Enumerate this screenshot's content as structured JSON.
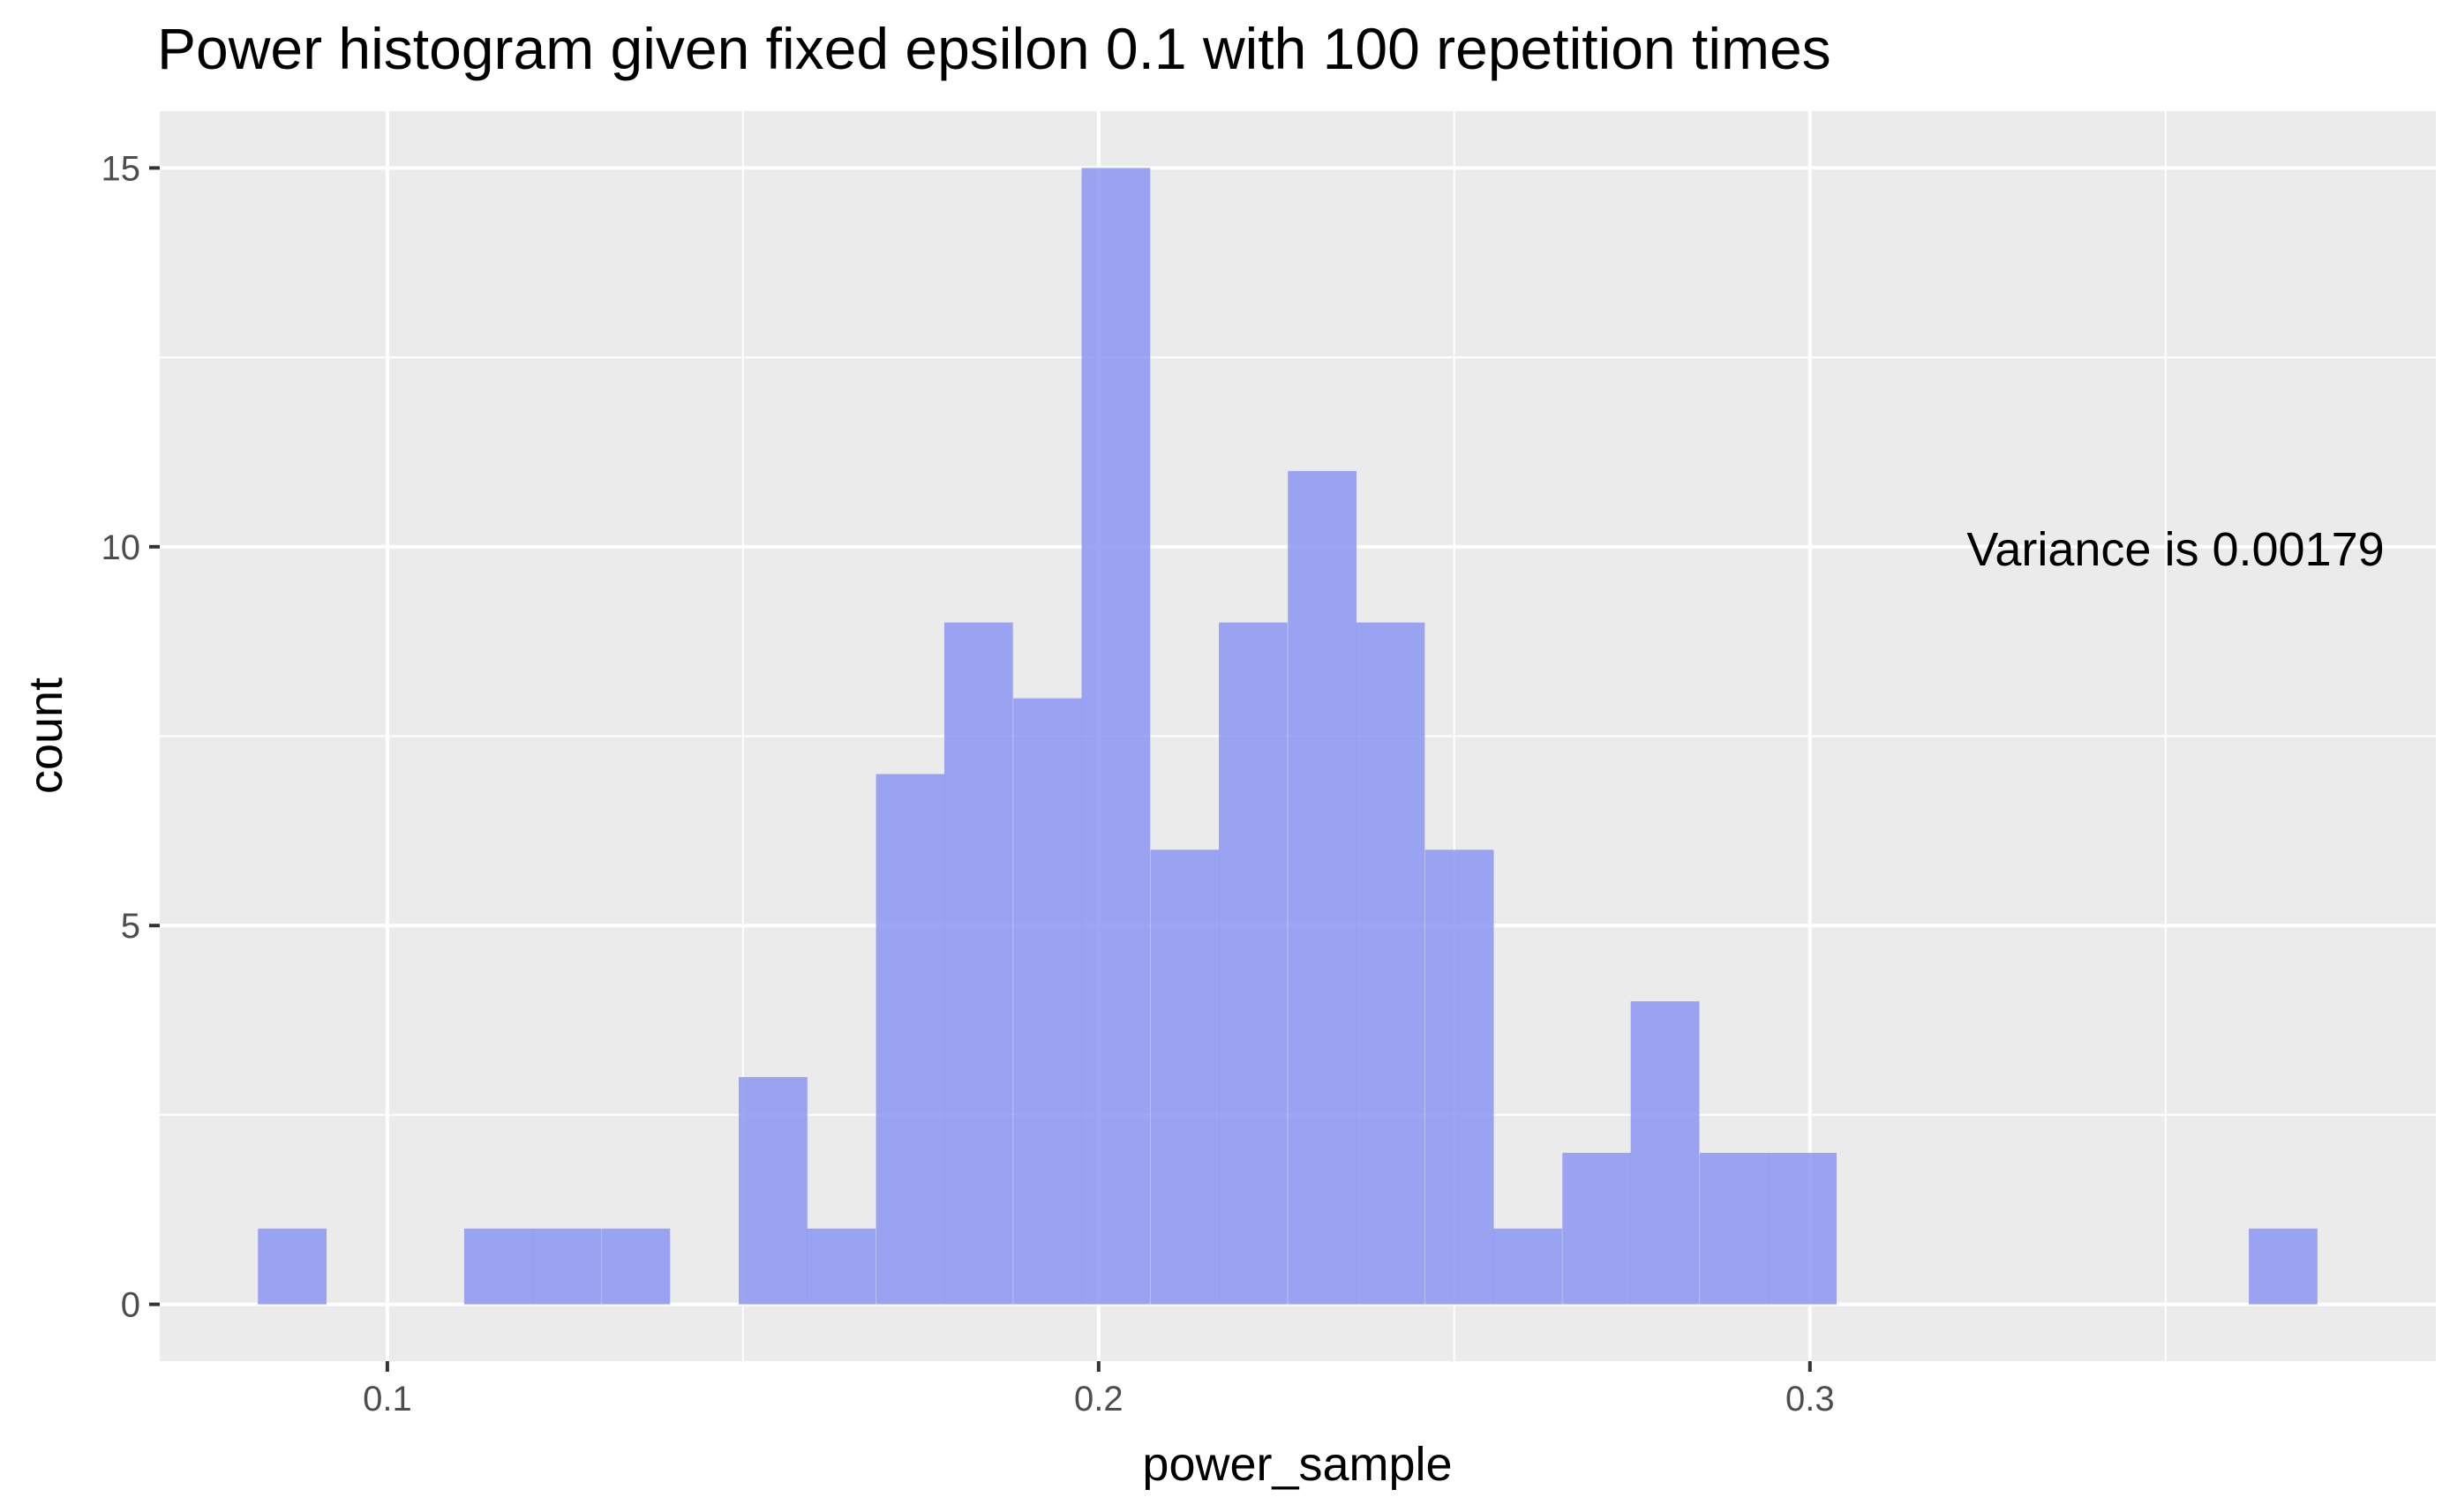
{
  "chart_data": {
    "type": "bar",
    "title": "Power histogram given fixed epsilon 0.1 with 100 repetition times",
    "xlabel": "power_sample",
    "ylabel": "count",
    "annotation": "Variance is 0.00179",
    "xlim": [
      0.068,
      0.388
    ],
    "ylim": [
      -0.75,
      15.75
    ],
    "x_ticks": [
      0.1,
      0.2,
      0.3
    ],
    "y_ticks": [
      0,
      5,
      10,
      15
    ],
    "grid": true,
    "bar_color": "#8c96f2",
    "panel_color": "#ebebeb",
    "bin_width": 0.00965,
    "bins": [
      {
        "x_start": 0.0818,
        "count": 1
      },
      {
        "x_start": 0.0915,
        "count": 0
      },
      {
        "x_start": 0.1011,
        "count": 0
      },
      {
        "x_start": 0.1108,
        "count": 1
      },
      {
        "x_start": 0.1204,
        "count": 1
      },
      {
        "x_start": 0.1301,
        "count": 1
      },
      {
        "x_start": 0.1397,
        "count": 0
      },
      {
        "x_start": 0.1494,
        "count": 3
      },
      {
        "x_start": 0.159,
        "count": 1
      },
      {
        "x_start": 0.1687,
        "count": 7
      },
      {
        "x_start": 0.1783,
        "count": 9
      },
      {
        "x_start": 0.188,
        "count": 8
      },
      {
        "x_start": 0.1976,
        "count": 15
      },
      {
        "x_start": 0.2073,
        "count": 6
      },
      {
        "x_start": 0.2169,
        "count": 9
      },
      {
        "x_start": 0.2266,
        "count": 11
      },
      {
        "x_start": 0.2362,
        "count": 9
      },
      {
        "x_start": 0.2459,
        "count": 6
      },
      {
        "x_start": 0.2555,
        "count": 1
      },
      {
        "x_start": 0.2652,
        "count": 2
      },
      {
        "x_start": 0.2748,
        "count": 4
      },
      {
        "x_start": 0.2845,
        "count": 2
      },
      {
        "x_start": 0.2941,
        "count": 2
      },
      {
        "x_start": 0.3038,
        "count": 0
      },
      {
        "x_start": 0.3134,
        "count": 0
      },
      {
        "x_start": 0.3231,
        "count": 0
      },
      {
        "x_start": 0.3327,
        "count": 0
      },
      {
        "x_start": 0.3424,
        "count": 0
      },
      {
        "x_start": 0.352,
        "count": 0
      },
      {
        "x_start": 0.3617,
        "count": 1
      }
    ]
  }
}
